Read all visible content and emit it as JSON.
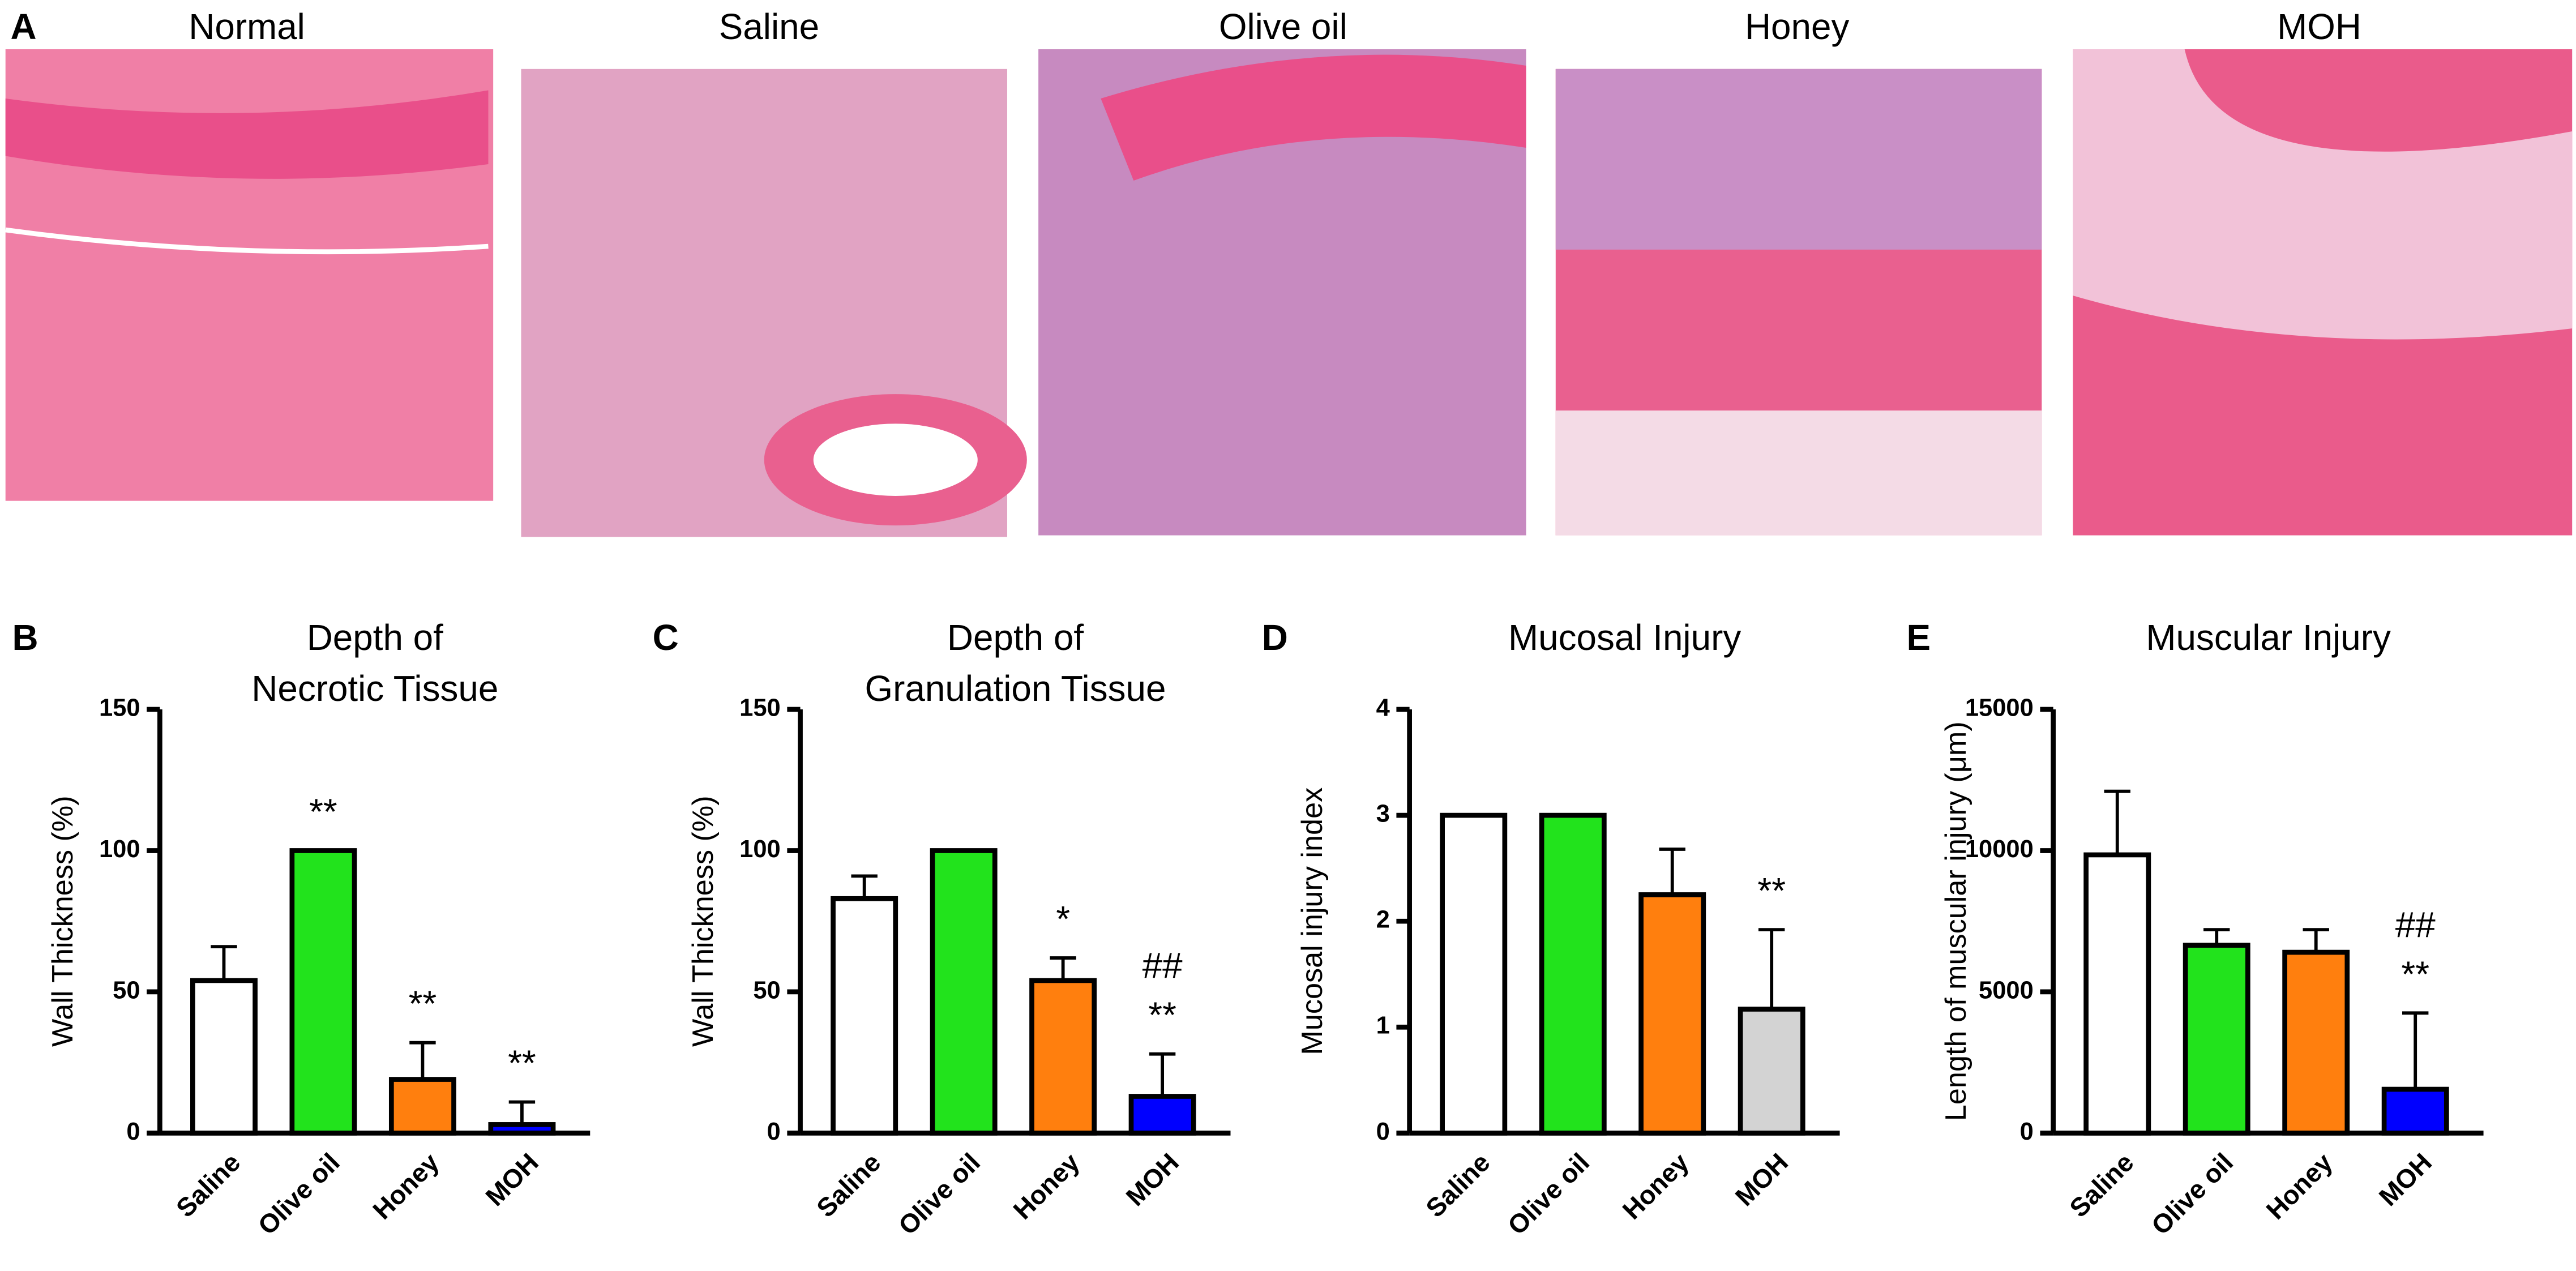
{
  "panel_a": {
    "label": "A",
    "titles": [
      "Normal",
      "Saline",
      "Olive oil",
      "Honey",
      "MOH"
    ]
  },
  "chart_data": [
    {
      "type": "bar",
      "panel": "B",
      "title": [
        "Depth of",
        "Necrotic Tissue"
      ],
      "ylabel": "Wall Thickness (%)",
      "categories": [
        "Saline",
        "Olive oil",
        "Honey",
        "MOH"
      ],
      "values": [
        54,
        100,
        19,
        3
      ],
      "errors": [
        12,
        0,
        13,
        8
      ],
      "colors": [
        "#ffffff",
        "#22e31c",
        "#ff7f0e",
        "#0000ff"
      ],
      "annotations": [
        null,
        "**",
        "**",
        "**"
      ],
      "ylim": [
        0,
        150
      ],
      "yticks": [
        0,
        50,
        100,
        150
      ]
    },
    {
      "type": "bar",
      "panel": "C",
      "title": [
        "Depth of",
        "Granulation Tissue"
      ],
      "ylabel": "Wall Thickness (%)",
      "categories": [
        "Saline",
        "Olive oil",
        "Honey",
        "MOH"
      ],
      "values": [
        83,
        100,
        54,
        13
      ],
      "errors": [
        8,
        0,
        8,
        15
      ],
      "colors": [
        "#ffffff",
        "#22e31c",
        "#ff7f0e",
        "#0000ff"
      ],
      "annotations": [
        null,
        null,
        "*",
        [
          "##",
          "**"
        ]
      ],
      "ylim": [
        0,
        150
      ],
      "yticks": [
        0,
        50,
        100,
        150
      ]
    },
    {
      "type": "bar",
      "panel": "D",
      "title": [
        "Mucosal Injury"
      ],
      "ylabel": "Mucosal injury index",
      "categories": [
        "Saline",
        "Olive oil",
        "Honey",
        "MOH"
      ],
      "values": [
        3,
        3,
        2.25,
        1.17
      ],
      "errors": [
        0,
        0,
        0.43,
        0.75
      ],
      "colors": [
        "#ffffff",
        "#22e31c",
        "#ff7f0e",
        "#d3d3d3"
      ],
      "annotations": [
        null,
        null,
        null,
        "**"
      ],
      "ylim": [
        0,
        4
      ],
      "yticks": [
        0,
        1,
        2,
        3,
        4
      ]
    },
    {
      "type": "bar",
      "panel": "E",
      "title": [
        "Muscular Injury"
      ],
      "ylabel": "Length of muscular injury (μm)",
      "categories": [
        "Saline",
        "Olive oil",
        "Honey",
        "MOH"
      ],
      "values": [
        9850,
        6650,
        6400,
        1550
      ],
      "errors": [
        2250,
        550,
        800,
        2700
      ],
      "colors": [
        "#ffffff",
        "#22e31c",
        "#ff7f0e",
        "#0000ff"
      ],
      "annotations": [
        null,
        null,
        null,
        [
          "##",
          "**"
        ]
      ],
      "ylim": [
        0,
        15000
      ],
      "yticks": [
        0,
        5000,
        10000,
        15000
      ]
    }
  ]
}
